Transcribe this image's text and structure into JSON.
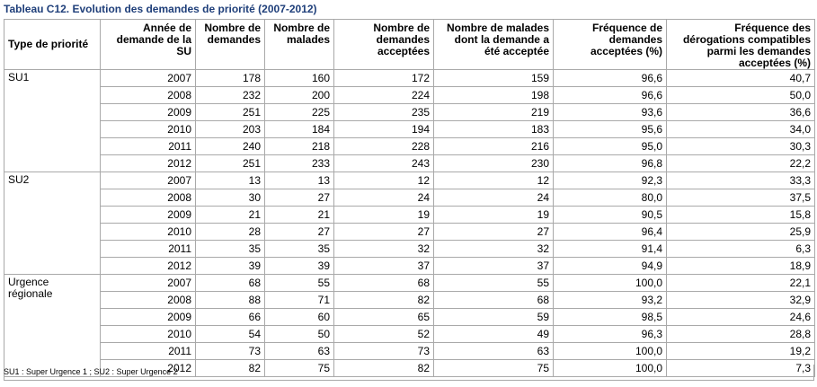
{
  "title": "Tableau C12. Evolution des demandes de priorité (2007-2012)",
  "headers": [
    "Type de priorité",
    "Année de demande de la SU",
    "Nombre de demandes",
    "Nombre de malades",
    "Nombre de demandes acceptées",
    "Nombre de malades dont la demande a été acceptée",
    "Fréquence de demandes acceptées (%)",
    "Fréquence des dérogations compatibles parmi les demandes acceptées (%)"
  ],
  "groups": [
    {
      "name": "SU1",
      "rows": [
        [
          "2007",
          "178",
          "160",
          "172",
          "159",
          "96,6",
          "40,7"
        ],
        [
          "2008",
          "232",
          "200",
          "224",
          "198",
          "96,6",
          "50,0"
        ],
        [
          "2009",
          "251",
          "225",
          "235",
          "219",
          "93,6",
          "36,6"
        ],
        [
          "2010",
          "203",
          "184",
          "194",
          "183",
          "95,6",
          "34,0"
        ],
        [
          "2011",
          "240",
          "218",
          "228",
          "216",
          "95,0",
          "30,3"
        ],
        [
          "2012",
          "251",
          "233",
          "243",
          "230",
          "96,8",
          "22,2"
        ]
      ]
    },
    {
      "name": "SU2",
      "rows": [
        [
          "2007",
          "13",
          "13",
          "12",
          "12",
          "92,3",
          "33,3"
        ],
        [
          "2008",
          "30",
          "27",
          "24",
          "24",
          "80,0",
          "37,5"
        ],
        [
          "2009",
          "21",
          "21",
          "19",
          "19",
          "90,5",
          "15,8"
        ],
        [
          "2010",
          "28",
          "27",
          "27",
          "27",
          "96,4",
          "25,9"
        ],
        [
          "2011",
          "35",
          "35",
          "32",
          "32",
          "91,4",
          "6,3"
        ],
        [
          "2012",
          "39",
          "39",
          "37",
          "37",
          "94,9",
          "18,9"
        ]
      ]
    },
    {
      "name": "Urgence régionale",
      "rows": [
        [
          "2007",
          "68",
          "55",
          "68",
          "55",
          "100,0",
          "22,1"
        ],
        [
          "2008",
          "88",
          "71",
          "82",
          "68",
          "93,2",
          "32,9"
        ],
        [
          "2009",
          "66",
          "60",
          "65",
          "59",
          "98,5",
          "24,6"
        ],
        [
          "2010",
          "54",
          "50",
          "52",
          "49",
          "96,3",
          "28,8"
        ],
        [
          "2011",
          "73",
          "63",
          "73",
          "63",
          "100,0",
          "19,2"
        ],
        [
          "2012",
          "82",
          "75",
          "82",
          "75",
          "100,0",
          "7,3"
        ]
      ]
    }
  ],
  "footnote": "SU1 : Super Urgence 1 ; SU2 : Super Urgence 2"
}
